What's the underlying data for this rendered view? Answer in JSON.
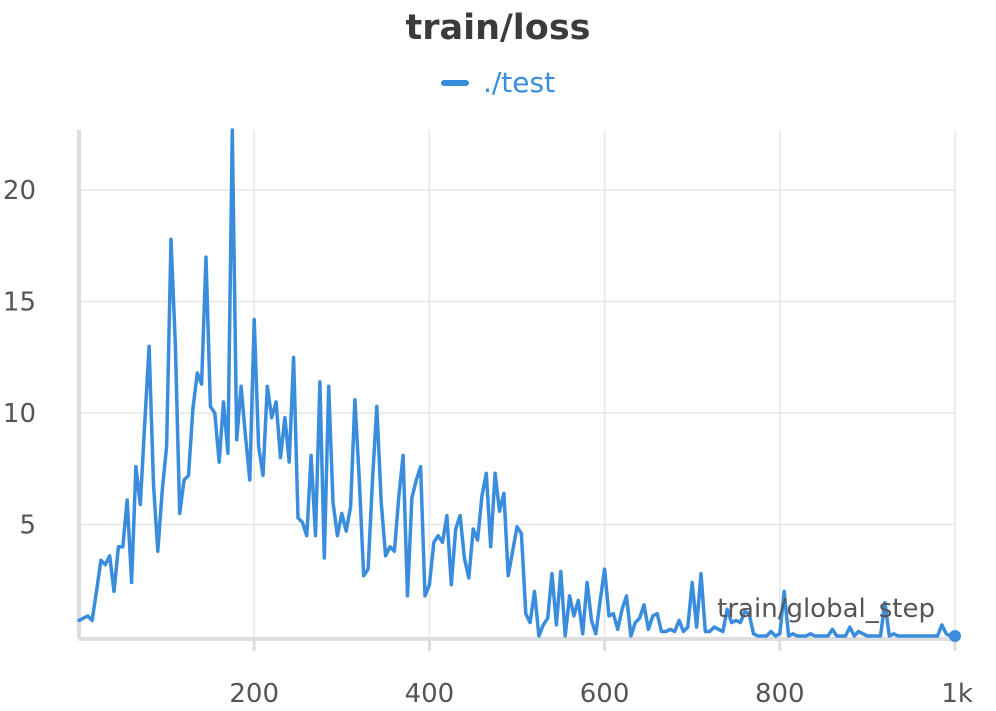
{
  "chart_data": {
    "type": "line",
    "title": "train/loss",
    "xlabel": "train/global_step",
    "ylabel": "",
    "xlim": [
      0,
      1000
    ],
    "ylim": [
      0,
      22.7
    ],
    "grid": true,
    "legend_position": "top-center",
    "x_ticks": [
      200,
      400,
      600,
      800,
      1000
    ],
    "x_tick_labels": [
      "200",
      "400",
      "600",
      "800",
      "1k"
    ],
    "y_ticks": [
      5,
      10,
      15,
      20
    ],
    "y_tick_labels": [
      "5",
      "10",
      "15",
      "20"
    ],
    "series": [
      {
        "name": "./test",
        "color": "#3a8ddd",
        "x": [
          0,
          5,
          10,
          15,
          20,
          25,
          30,
          35,
          40,
          45,
          50,
          55,
          60,
          65,
          70,
          75,
          80,
          85,
          90,
          95,
          100,
          105,
          110,
          115,
          120,
          125,
          130,
          135,
          140,
          145,
          150,
          155,
          160,
          165,
          170,
          175,
          180,
          185,
          190,
          195,
          200,
          205,
          210,
          215,
          220,
          225,
          230,
          235,
          240,
          245,
          250,
          255,
          260,
          265,
          270,
          275,
          280,
          285,
          290,
          295,
          300,
          305,
          310,
          315,
          320,
          325,
          330,
          335,
          340,
          345,
          350,
          355,
          360,
          365,
          370,
          375,
          380,
          385,
          390,
          395,
          400,
          405,
          410,
          415,
          420,
          425,
          430,
          435,
          440,
          445,
          450,
          455,
          460,
          465,
          470,
          475,
          480,
          485,
          490,
          495,
          500,
          505,
          510,
          515,
          520,
          525,
          530,
          535,
          540,
          545,
          550,
          555,
          560,
          565,
          570,
          575,
          580,
          585,
          590,
          595,
          600,
          605,
          610,
          615,
          620,
          625,
          630,
          635,
          640,
          645,
          650,
          655,
          660,
          665,
          670,
          675,
          680,
          685,
          690,
          695,
          700,
          705,
          710,
          715,
          720,
          725,
          730,
          735,
          740,
          745,
          750,
          755,
          760,
          765,
          770,
          775,
          780,
          785,
          790,
          795,
          800,
          805,
          810,
          815,
          820,
          825,
          830,
          835,
          840,
          845,
          850,
          855,
          860,
          865,
          870,
          875,
          880,
          885,
          890,
          895,
          900,
          905,
          910,
          915,
          920,
          925,
          930,
          935,
          940,
          945,
          950,
          955,
          960,
          965,
          970,
          975,
          980,
          985,
          990,
          995,
          1000
        ],
        "values": [
          0.7,
          0.8,
          0.9,
          0.7,
          2.0,
          3.4,
          3.2,
          3.6,
          2.0,
          4.0,
          4.0,
          6.1,
          2.4,
          7.6,
          5.9,
          9.5,
          13.0,
          6.8,
          3.8,
          6.5,
          8.5,
          17.8,
          13.0,
          5.5,
          7.0,
          7.2,
          10.2,
          11.8,
          11.3,
          17.0,
          10.3,
          10.0,
          7.8,
          10.5,
          8.2,
          22.7,
          8.8,
          11.2,
          9.0,
          7.0,
          14.2,
          8.5,
          7.2,
          11.2,
          9.8,
          10.5,
          8.0,
          9.8,
          7.8,
          12.5,
          5.3,
          5.1,
          4.5,
          8.1,
          4.5,
          11.4,
          3.5,
          11.2,
          6.0,
          4.5,
          5.5,
          4.7,
          5.8,
          10.6,
          7.0,
          2.7,
          3.0,
          7.0,
          10.3,
          6.0,
          3.6,
          4.0,
          3.8,
          6.2,
          8.1,
          1.8,
          6.2,
          7.0,
          7.6,
          1.8,
          2.3,
          4.2,
          4.5,
          4.2,
          5.4,
          2.3,
          4.8,
          5.4,
          3.5,
          2.6,
          4.8,
          4.3,
          6.3,
          7.3,
          4.0,
          7.3,
          5.6,
          6.4,
          2.7,
          3.8,
          4.9,
          4.6,
          1.0,
          0.6,
          2.0,
          0.0,
          0.5,
          0.8,
          2.8,
          0.5,
          2.9,
          0.0,
          1.8,
          0.9,
          1.6,
          0.1,
          2.4,
          0.7,
          0.1,
          1.6,
          3.0,
          0.9,
          1.0,
          0.3,
          1.2,
          1.8,
          0.0,
          0.6,
          0.8,
          1.4,
          0.3,
          0.9,
          1.0,
          0.2,
          0.2,
          0.3,
          0.2,
          0.7,
          0.2,
          0.4,
          2.4,
          0.4,
          2.8,
          0.2,
          0.2,
          0.4,
          0.3,
          0.2,
          1.2,
          0.6,
          0.7,
          0.6,
          1.1,
          1.0,
          0.1,
          0.0,
          0.0,
          0.0,
          0.2,
          0.0,
          0.1,
          2.0,
          0.0,
          0.1,
          0.0,
          0.0,
          0.0,
          0.1,
          0.0,
          0.0,
          0.0,
          0.0,
          0.3,
          0.0,
          0.0,
          0.0,
          0.4,
          0.0,
          0.2,
          0.1,
          0.0,
          0.0,
          0.0,
          0.0,
          1.5,
          0.0,
          0.1,
          0.0,
          0.0,
          0.0,
          0.0,
          0.0,
          0.0,
          0.0,
          0.0,
          0.0,
          0.0,
          0.5,
          0.1,
          0.0,
          0.0
        ]
      }
    ]
  }
}
